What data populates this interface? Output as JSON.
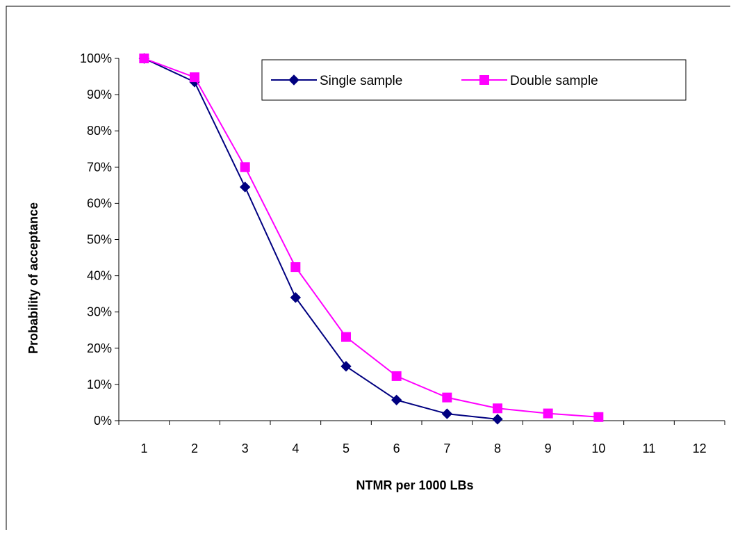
{
  "chart_data": {
    "type": "line",
    "xlabel": "NTMR per 1000 LBs",
    "ylabel": "Probability of acceptance",
    "categories": [
      "1",
      "2",
      "3",
      "4",
      "5",
      "6",
      "7",
      "8",
      "9",
      "10",
      "11",
      "12"
    ],
    "yticks": [
      "0%",
      "10%",
      "20%",
      "30%",
      "40%",
      "50%",
      "60%",
      "70%",
      "80%",
      "90%",
      "100%"
    ],
    "ylim": [
      0,
      1
    ],
    "grid": false,
    "legend_position": "top-right",
    "series": [
      {
        "name": "Single sample",
        "color": "#000080",
        "marker": "diamond",
        "values": [
          1.0,
          0.935,
          0.645,
          0.34,
          0.15,
          0.057,
          0.019,
          0.004,
          null,
          null,
          null,
          null
        ]
      },
      {
        "name": "Double sample",
        "color": "#FF00FF",
        "marker": "square",
        "values": [
          1.0,
          0.948,
          0.7,
          0.424,
          0.231,
          0.123,
          0.064,
          0.034,
          0.02,
          0.01,
          null,
          null
        ]
      }
    ]
  }
}
